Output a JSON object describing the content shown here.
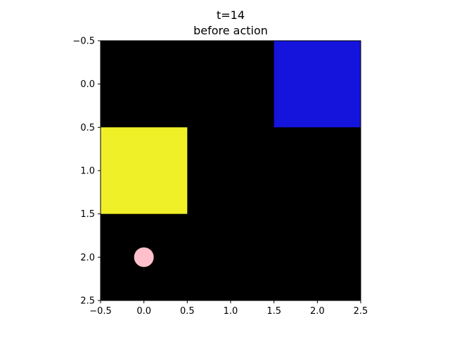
{
  "title": {
    "line1": "t=14",
    "line2": "before action"
  },
  "grid": {
    "rows": 3,
    "cols": 3,
    "background_color": "#000000",
    "xlim": [
      -0.5,
      2.5
    ],
    "ylim": [
      2.5,
      -0.5
    ],
    "x_ticks": [
      "−0.5",
      "0.0",
      "0.5",
      "1.0",
      "1.5",
      "2.0",
      "2.5"
    ],
    "y_ticks": [
      "−0.5",
      "0.0",
      "0.5",
      "1.0",
      "1.5",
      "2.0",
      "2.5"
    ]
  },
  "objects": [
    {
      "kind": "square",
      "name": "blue-square",
      "col": 2,
      "row": 0,
      "color": "#1414dc"
    },
    {
      "kind": "square",
      "name": "yellow-square",
      "col": 0,
      "row": 1,
      "color": "#f0f028"
    }
  ],
  "agent": {
    "col": 0,
    "row": 2,
    "color": "#ffc0cb"
  }
}
